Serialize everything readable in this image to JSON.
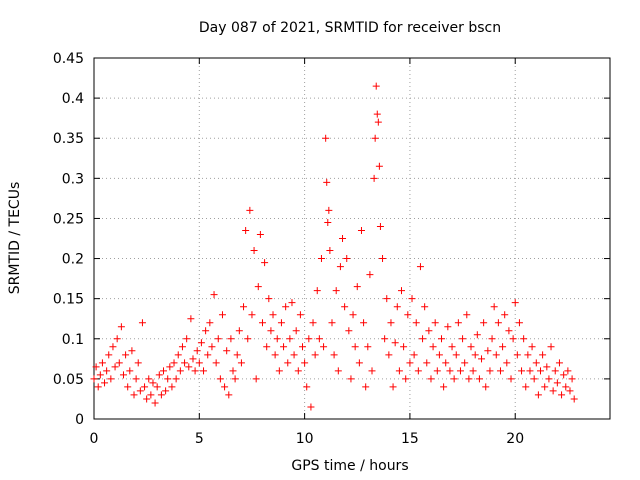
{
  "chart_data": {
    "type": "scatter",
    "title": "Day 087 of 2021, SRMTID for receiver bscn",
    "xlabel": "GPS time / hours",
    "ylabel": "SRMTID / TECUs",
    "xlim": [
      0,
      24.5
    ],
    "ylim": [
      0,
      0.45
    ],
    "x_ticks": [
      0,
      5,
      10,
      15,
      20
    ],
    "x_tick_labels": [
      "0",
      "5",
      "10",
      "15",
      "20"
    ],
    "y_ticks": [
      0,
      0.05,
      0.1,
      0.15,
      0.2,
      0.25,
      0.3,
      0.35,
      0.4,
      0.45
    ],
    "y_tick_labels": [
      "0",
      "0.05",
      "0.1",
      "0.15",
      "0.2",
      "0.25",
      "0.3",
      "0.35",
      "0.4",
      "0.45"
    ],
    "grid": true,
    "marker": "+",
    "series": [
      {
        "name": "SRMTID",
        "color": "#ff0000",
        "points": [
          [
            0.0,
            0.05
          ],
          [
            0.1,
            0.065
          ],
          [
            0.2,
            0.04
          ],
          [
            0.3,
            0.055
          ],
          [
            0.4,
            0.07
          ],
          [
            0.5,
            0.045
          ],
          [
            0.6,
            0.06
          ],
          [
            0.7,
            0.08
          ],
          [
            0.8,
            0.05
          ],
          [
            0.9,
            0.09
          ],
          [
            1.0,
            0.065
          ],
          [
            1.1,
            0.1
          ],
          [
            1.2,
            0.07
          ],
          [
            1.3,
            0.115
          ],
          [
            1.4,
            0.055
          ],
          [
            1.5,
            0.08
          ],
          [
            1.6,
            0.04
          ],
          [
            1.7,
            0.06
          ],
          [
            1.8,
            0.085
          ],
          [
            1.9,
            0.03
          ],
          [
            2.0,
            0.05
          ],
          [
            2.1,
            0.07
          ],
          [
            2.2,
            0.035
          ],
          [
            2.3,
            0.12
          ],
          [
            2.4,
            0.04
          ],
          [
            2.5,
            0.025
          ],
          [
            2.6,
            0.05
          ],
          [
            2.7,
            0.03
          ],
          [
            2.8,
            0.045
          ],
          [
            2.9,
            0.02
          ],
          [
            3.0,
            0.04
          ],
          [
            3.1,
            0.055
          ],
          [
            3.2,
            0.03
          ],
          [
            3.3,
            0.06
          ],
          [
            3.4,
            0.035
          ],
          [
            3.5,
            0.05
          ],
          [
            3.6,
            0.065
          ],
          [
            3.7,
            0.04
          ],
          [
            3.8,
            0.07
          ],
          [
            3.9,
            0.05
          ],
          [
            4.0,
            0.08
          ],
          [
            4.1,
            0.06
          ],
          [
            4.2,
            0.09
          ],
          [
            4.3,
            0.07
          ],
          [
            4.4,
            0.1
          ],
          [
            4.5,
            0.065
          ],
          [
            4.6,
            0.125
          ],
          [
            4.7,
            0.075
          ],
          [
            4.8,
            0.06
          ],
          [
            4.9,
            0.085
          ],
          [
            5.0,
            0.07
          ],
          [
            5.1,
            0.095
          ],
          [
            5.2,
            0.06
          ],
          [
            5.3,
            0.11
          ],
          [
            5.4,
            0.08
          ],
          [
            5.5,
            0.12
          ],
          [
            5.6,
            0.09
          ],
          [
            5.7,
            0.155
          ],
          [
            5.8,
            0.07
          ],
          [
            5.9,
            0.1
          ],
          [
            6.0,
            0.05
          ],
          [
            6.1,
            0.13
          ],
          [
            6.2,
            0.04
          ],
          [
            6.3,
            0.085
          ],
          [
            6.4,
            0.03
          ],
          [
            6.5,
            0.1
          ],
          [
            6.6,
            0.06
          ],
          [
            6.7,
            0.05
          ],
          [
            6.8,
            0.08
          ],
          [
            6.9,
            0.11
          ],
          [
            7.0,
            0.07
          ],
          [
            7.1,
            0.14
          ],
          [
            7.2,
            0.235
          ],
          [
            7.3,
            0.1
          ],
          [
            7.4,
            0.26
          ],
          [
            7.5,
            0.13
          ],
          [
            7.6,
            0.21
          ],
          [
            7.7,
            0.05
          ],
          [
            7.8,
            0.165
          ],
          [
            7.9,
            0.23
          ],
          [
            8.0,
            0.12
          ],
          [
            8.1,
            0.195
          ],
          [
            8.2,
            0.09
          ],
          [
            8.3,
            0.15
          ],
          [
            8.4,
            0.11
          ],
          [
            8.5,
            0.13
          ],
          [
            8.6,
            0.08
          ],
          [
            8.7,
            0.1
          ],
          [
            8.8,
            0.06
          ],
          [
            8.9,
            0.12
          ],
          [
            9.0,
            0.09
          ],
          [
            9.1,
            0.14
          ],
          [
            9.2,
            0.07
          ],
          [
            9.3,
            0.1
          ],
          [
            9.4,
            0.145
          ],
          [
            9.5,
            0.08
          ],
          [
            9.6,
            0.11
          ],
          [
            9.7,
            0.06
          ],
          [
            9.8,
            0.13
          ],
          [
            9.9,
            0.09
          ],
          [
            10.0,
            0.07
          ],
          [
            10.1,
            0.04
          ],
          [
            10.2,
            0.1
          ],
          [
            10.3,
            0.015
          ],
          [
            10.4,
            0.12
          ],
          [
            10.5,
            0.08
          ],
          [
            10.6,
            0.16
          ],
          [
            10.7,
            0.1
          ],
          [
            10.8,
            0.2
          ],
          [
            10.9,
            0.09
          ],
          [
            11.0,
            0.35
          ],
          [
            11.05,
            0.295
          ],
          [
            11.1,
            0.245
          ],
          [
            11.15,
            0.26
          ],
          [
            11.2,
            0.21
          ],
          [
            11.3,
            0.12
          ],
          [
            11.4,
            0.08
          ],
          [
            11.5,
            0.16
          ],
          [
            11.6,
            0.06
          ],
          [
            11.7,
            0.19
          ],
          [
            11.8,
            0.225
          ],
          [
            11.9,
            0.14
          ],
          [
            12.0,
            0.2
          ],
          [
            12.1,
            0.11
          ],
          [
            12.2,
            0.05
          ],
          [
            12.3,
            0.13
          ],
          [
            12.4,
            0.09
          ],
          [
            12.5,
            0.165
          ],
          [
            12.6,
            0.07
          ],
          [
            12.7,
            0.235
          ],
          [
            12.8,
            0.12
          ],
          [
            12.9,
            0.04
          ],
          [
            13.0,
            0.09
          ],
          [
            13.1,
            0.18
          ],
          [
            13.2,
            0.06
          ],
          [
            13.3,
            0.3
          ],
          [
            13.35,
            0.35
          ],
          [
            13.4,
            0.415
          ],
          [
            13.45,
            0.38
          ],
          [
            13.5,
            0.37
          ],
          [
            13.55,
            0.315
          ],
          [
            13.6,
            0.24
          ],
          [
            13.7,
            0.2
          ],
          [
            13.8,
            0.1
          ],
          [
            13.9,
            0.15
          ],
          [
            14.0,
            0.08
          ],
          [
            14.1,
            0.12
          ],
          [
            14.2,
            0.04
          ],
          [
            14.3,
            0.095
          ],
          [
            14.4,
            0.14
          ],
          [
            14.5,
            0.06
          ],
          [
            14.6,
            0.16
          ],
          [
            14.7,
            0.09
          ],
          [
            14.8,
            0.05
          ],
          [
            14.9,
            0.13
          ],
          [
            15.0,
            0.07
          ],
          [
            15.1,
            0.15
          ],
          [
            15.2,
            0.08
          ],
          [
            15.3,
            0.12
          ],
          [
            15.4,
            0.06
          ],
          [
            15.5,
            0.19
          ],
          [
            15.6,
            0.1
          ],
          [
            15.7,
            0.14
          ],
          [
            15.8,
            0.07
          ],
          [
            15.9,
            0.11
          ],
          [
            16.0,
            0.05
          ],
          [
            16.1,
            0.09
          ],
          [
            16.2,
            0.12
          ],
          [
            16.3,
            0.06
          ],
          [
            16.4,
            0.08
          ],
          [
            16.5,
            0.1
          ],
          [
            16.6,
            0.04
          ],
          [
            16.7,
            0.07
          ],
          [
            16.8,
            0.115
          ],
          [
            16.9,
            0.06
          ],
          [
            17.0,
            0.09
          ],
          [
            17.1,
            0.05
          ],
          [
            17.2,
            0.08
          ],
          [
            17.3,
            0.12
          ],
          [
            17.4,
            0.06
          ],
          [
            17.5,
            0.1
          ],
          [
            17.6,
            0.07
          ],
          [
            17.7,
            0.13
          ],
          [
            17.8,
            0.05
          ],
          [
            17.9,
            0.09
          ],
          [
            18.0,
            0.06
          ],
          [
            18.1,
            0.08
          ],
          [
            18.2,
            0.105
          ],
          [
            18.3,
            0.05
          ],
          [
            18.4,
            0.075
          ],
          [
            18.5,
            0.12
          ],
          [
            18.6,
            0.04
          ],
          [
            18.7,
            0.085
          ],
          [
            18.8,
            0.06
          ],
          [
            18.9,
            0.1
          ],
          [
            19.0,
            0.14
          ],
          [
            19.1,
            0.08
          ],
          [
            19.2,
            0.12
          ],
          [
            19.3,
            0.06
          ],
          [
            19.4,
            0.09
          ],
          [
            19.5,
            0.13
          ],
          [
            19.6,
            0.07
          ],
          [
            19.7,
            0.11
          ],
          [
            19.8,
            0.05
          ],
          [
            19.9,
            0.1
          ],
          [
            20.0,
            0.145
          ],
          [
            20.1,
            0.08
          ],
          [
            20.2,
            0.12
          ],
          [
            20.3,
            0.06
          ],
          [
            20.4,
            0.1
          ],
          [
            20.5,
            0.04
          ],
          [
            20.6,
            0.08
          ],
          [
            20.7,
            0.06
          ],
          [
            20.8,
            0.09
          ],
          [
            20.9,
            0.05
          ],
          [
            21.0,
            0.07
          ],
          [
            21.1,
            0.03
          ],
          [
            21.2,
            0.06
          ],
          [
            21.3,
            0.08
          ],
          [
            21.4,
            0.04
          ],
          [
            21.5,
            0.065
          ],
          [
            21.6,
            0.05
          ],
          [
            21.7,
            0.09
          ],
          [
            21.8,
            0.035
          ],
          [
            21.9,
            0.06
          ],
          [
            22.0,
            0.045
          ],
          [
            22.1,
            0.07
          ],
          [
            22.2,
            0.03
          ],
          [
            22.3,
            0.055
          ],
          [
            22.4,
            0.04
          ],
          [
            22.5,
            0.06
          ],
          [
            22.6,
            0.035
          ],
          [
            22.7,
            0.05
          ],
          [
            22.8,
            0.025
          ]
        ]
      }
    ]
  }
}
